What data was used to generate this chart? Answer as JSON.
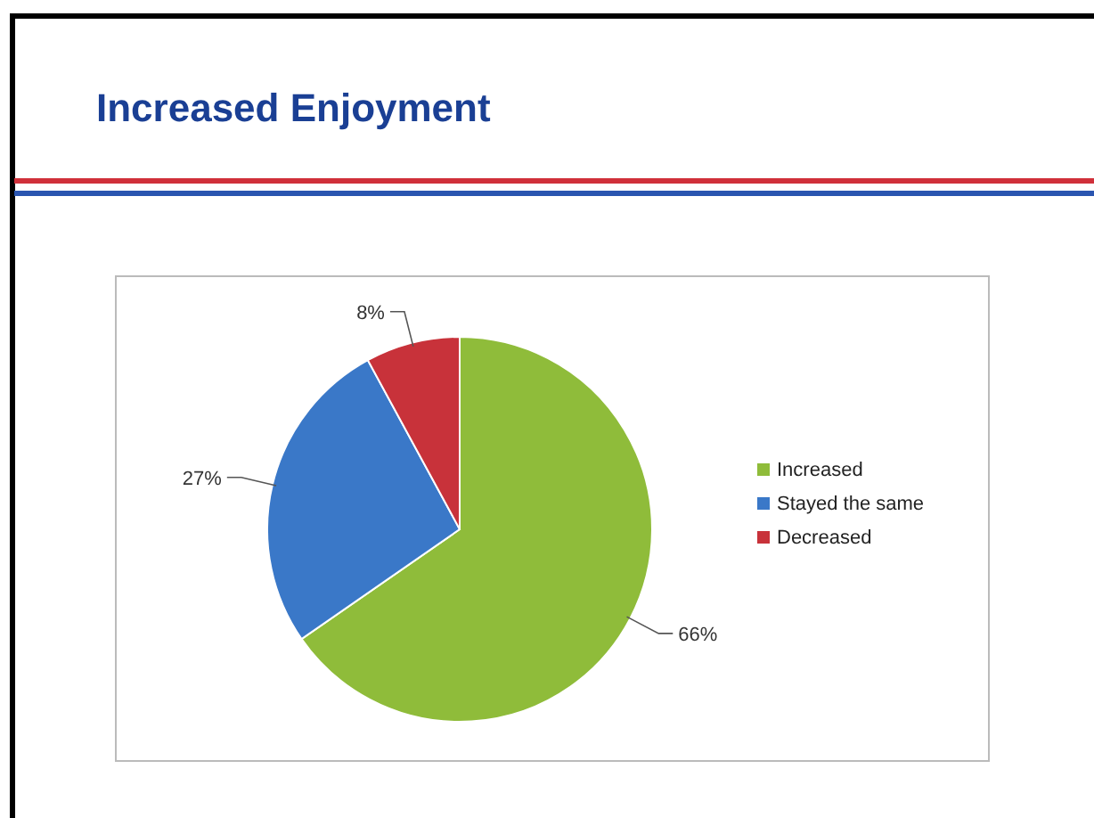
{
  "chart_data": {
    "type": "pie",
    "title": "Increased Enjoyment",
    "categories": [
      "Increased",
      "Stayed the same",
      "Decreased"
    ],
    "values": [
      66,
      27,
      8
    ],
    "colors": [
      "#8fbc3a",
      "#3a78c8",
      "#c8323a"
    ],
    "value_labels": [
      "66%",
      "27%",
      "8%"
    ],
    "legend": "right"
  }
}
